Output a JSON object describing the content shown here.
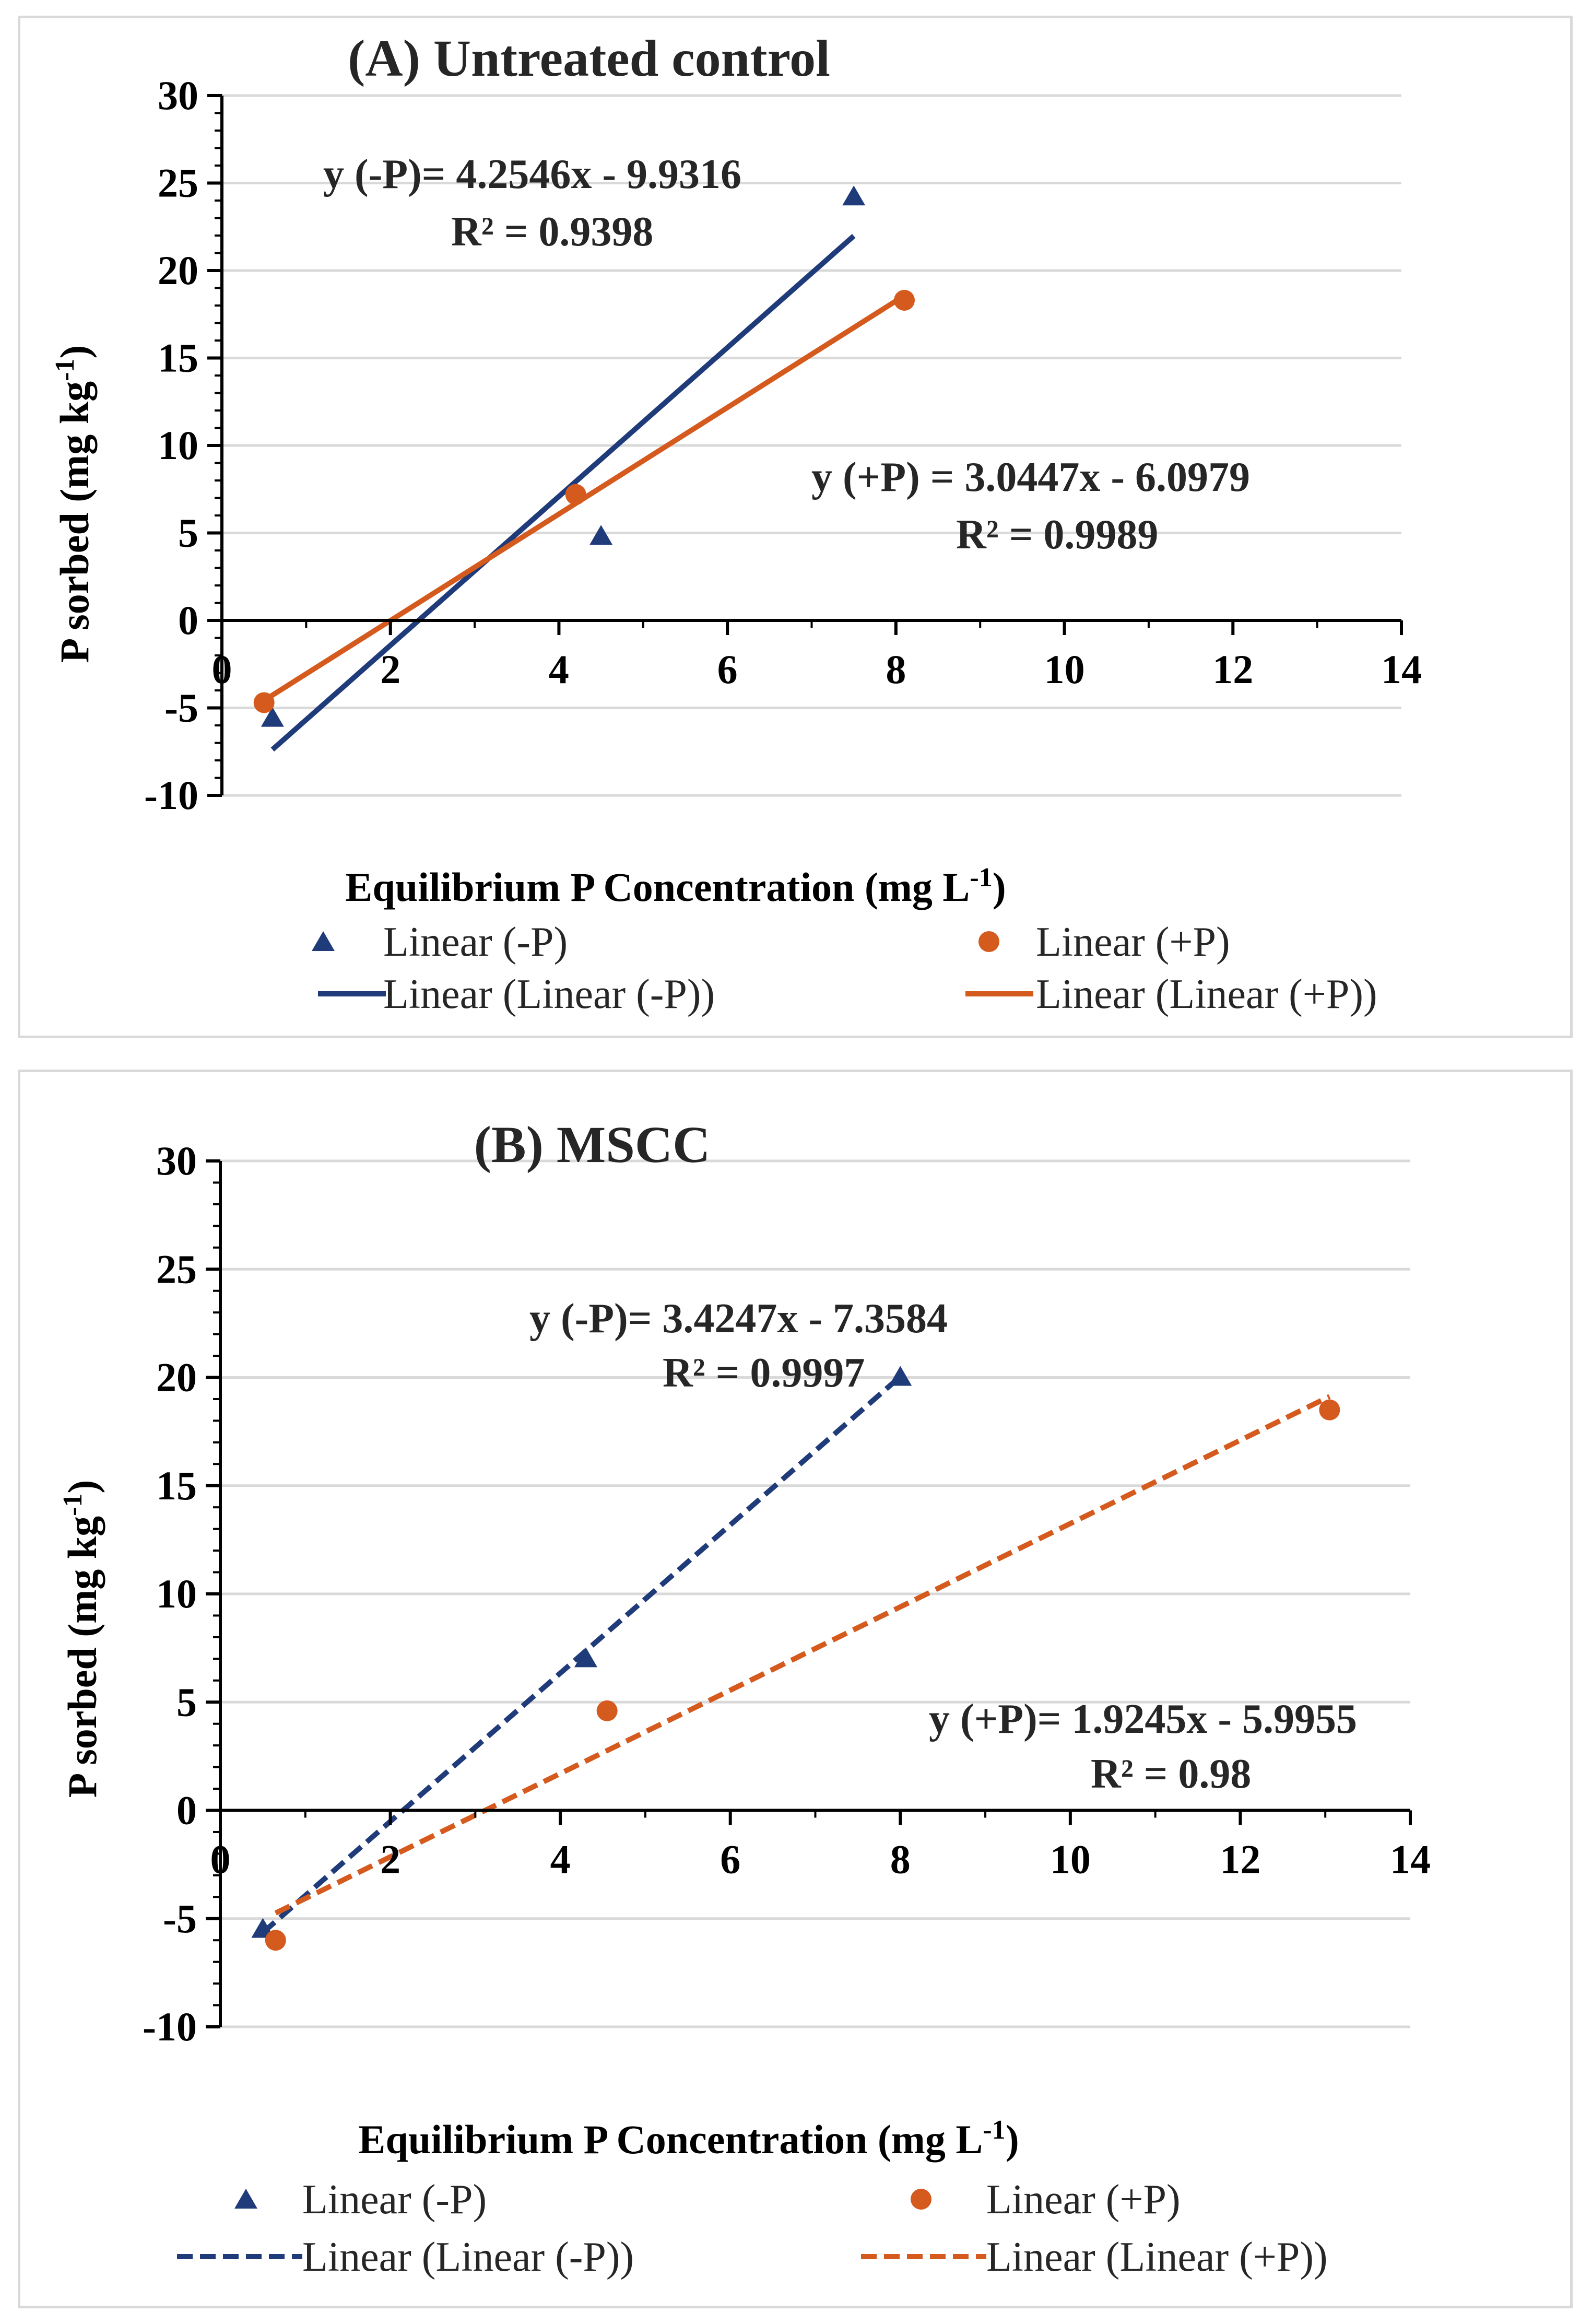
{
  "chart_data": [
    {
      "id": "a",
      "type": "scatter",
      "title": "(A) Untreated control",
      "xlabel": "Equilibrium P Concentration (mg L",
      "xlabel_sup": "-1",
      "xlabel_end": ")",
      "ylabel": "P sorbed (mg kg",
      "ylabel_sup": "-1",
      "ylabel_end": ")",
      "xlim": [
        0,
        14
      ],
      "ylim": [
        -10,
        30
      ],
      "x_ticks": [
        0,
        2,
        4,
        6,
        8,
        10,
        12,
        14
      ],
      "y_ticks": [
        -10,
        -5,
        0,
        5,
        10,
        15,
        20,
        25,
        30
      ],
      "x_tick_labels": [
        "0",
        "2",
        "4",
        "6",
        "8",
        "10",
        "12",
        "14"
      ],
      "y_tick_labels": [
        "-10",
        "-5",
        "0",
        "5",
        "10",
        "15",
        "20",
        "25",
        "30"
      ],
      "grid": true,
      "series": [
        {
          "name": "Linear (-P)",
          "marker": "triangle",
          "color": "#1f3b7a",
          "points": [
            [
              0.6,
              -5.6
            ],
            [
              4.5,
              4.8
            ],
            [
              7.5,
              24.2
            ]
          ],
          "trendline": {
            "name": "Linear (Linear (-P))",
            "style": "solid",
            "slope": 4.2546,
            "intercept": -9.9316,
            "x_range": [
              0.6,
              7.5
            ],
            "equation": "y (-P)= 4.2546x - 9.9316",
            "r2": "R² = 0.9398"
          }
        },
        {
          "name": "Linear (+P)",
          "marker": "circle",
          "color": "#d55a1e",
          "points": [
            [
              0.5,
              -4.7
            ],
            [
              4.2,
              7.2
            ],
            [
              8.1,
              18.3
            ]
          ],
          "trendline": {
            "name": "Linear (Linear (+P))",
            "style": "solid",
            "slope": 3.0447,
            "intercept": -6.0979,
            "x_range": [
              0.5,
              8.1
            ],
            "equation": "y (+P) = 3.0447x - 6.0979",
            "r2": "R² = 0.9989"
          }
        }
      ],
      "legend_position": "bottom"
    },
    {
      "id": "b",
      "type": "scatter",
      "title": "(B) MSCC",
      "xlabel": "Equilibrium P Concentration (mg L",
      "xlabel_sup": "-1",
      "xlabel_end": ")",
      "ylabel": "P sorbed (mg kg",
      "ylabel_sup": "-1",
      "ylabel_end": ")",
      "xlim": [
        0,
        14
      ],
      "ylim": [
        -10,
        30
      ],
      "x_ticks": [
        0,
        2,
        4,
        6,
        8,
        10,
        12,
        14
      ],
      "y_ticks": [
        -10,
        -5,
        0,
        5,
        10,
        15,
        20,
        25,
        30
      ],
      "x_tick_labels": [
        "0",
        "2",
        "4",
        "6",
        "8",
        "10",
        "12",
        "14"
      ],
      "y_tick_labels": [
        "-10",
        "-5",
        "0",
        "5",
        "10",
        "15",
        "20",
        "25",
        "30"
      ],
      "grid": true,
      "series": [
        {
          "name": "Linear (-P)",
          "marker": "triangle",
          "color": "#1f3b7a",
          "points": [
            [
              0.5,
              -5.5
            ],
            [
              4.3,
              7.0
            ],
            [
              8.0,
              20.0
            ]
          ],
          "trendline": {
            "name": "Linear (Linear (-P))",
            "style": "dashed",
            "slope": 3.4247,
            "intercept": -7.3584,
            "x_range": [
              0.5,
              8.0
            ],
            "equation": "y (-P)= 3.4247x - 7.3584",
            "r2": "R² = 0.9997"
          }
        },
        {
          "name": "Linear (+P)",
          "marker": "circle",
          "color": "#d55a1e",
          "points": [
            [
              0.65,
              -6.0
            ],
            [
              4.55,
              4.6
            ],
            [
              13.05,
              18.5
            ]
          ],
          "trendline": {
            "name": "Linear (Linear (+P))",
            "style": "dashed",
            "slope": 1.9245,
            "intercept": -5.9955,
            "x_range": [
              0.65,
              13.05
            ],
            "equation": "y (+P)= 1.9245x - 5.9955",
            "r2": "R² = 0.98"
          }
        }
      ],
      "legend_position": "bottom"
    }
  ]
}
